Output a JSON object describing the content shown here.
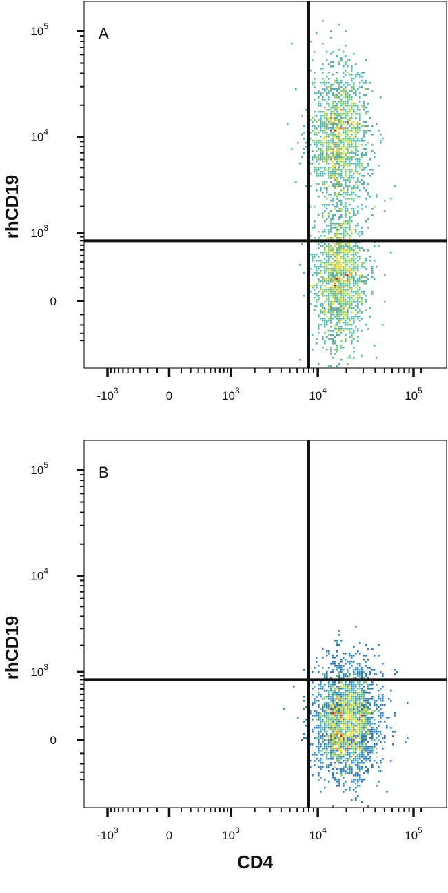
{
  "chart_data": [
    {
      "type": "scatter",
      "panel_label": "A",
      "xlabel": "CD4",
      "ylabel": "rhCD19",
      "x_scale": "biexponential",
      "y_scale": "biexponential",
      "xlim": [
        -2000,
        150000
      ],
      "ylim": [
        -500,
        250000
      ],
      "x_ticks": [
        {
          "value": -1000,
          "base": "-10",
          "exp": "3"
        },
        {
          "value": 0,
          "base": "0",
          "exp": ""
        },
        {
          "value": 1000,
          "base": "10",
          "exp": "3"
        },
        {
          "value": 10000,
          "base": "10",
          "exp": "4"
        },
        {
          "value": 100000,
          "base": "10",
          "exp": "5"
        }
      ],
      "y_ticks": [
        {
          "value": 0,
          "base": "0",
          "exp": ""
        },
        {
          "value": 1000,
          "base": "10",
          "exp": "3"
        },
        {
          "value": 10000,
          "base": "10",
          "exp": "4"
        },
        {
          "value": 100000,
          "base": "10",
          "exp": "5"
        }
      ],
      "gates": {
        "x": 8000,
        "y": 800
      },
      "populations": [
        {
          "center_x": 17000,
          "center_y": 10000,
          "count": 1500,
          "spread_x": 0.16,
          "spread_y": 0.55
        },
        {
          "center_x": 17000,
          "center_y": 200,
          "count": 1600,
          "spread_x": 0.14,
          "spread_y": 0.55
        }
      ],
      "colormap": [
        "#1f3f9f",
        "#2b7bbf",
        "#4fb3b0",
        "#8fd05a",
        "#e8e03a",
        "#f08a25",
        "#d8221a"
      ]
    },
    {
      "type": "scatter",
      "panel_label": "B",
      "xlabel": "CD4",
      "ylabel": "rhCD19",
      "x_scale": "biexponential",
      "y_scale": "biexponential",
      "xlim": [
        -2000,
        150000
      ],
      "ylim": [
        -500,
        250000
      ],
      "x_ticks": [
        {
          "value": -1000,
          "base": "-10",
          "exp": "3"
        },
        {
          "value": 0,
          "base": "0",
          "exp": ""
        },
        {
          "value": 1000,
          "base": "10",
          "exp": "3"
        },
        {
          "value": 10000,
          "base": "10",
          "exp": "4"
        },
        {
          "value": 100000,
          "base": "10",
          "exp": "5"
        }
      ],
      "y_ticks": [
        {
          "value": 0,
          "base": "0",
          "exp": ""
        },
        {
          "value": 1000,
          "base": "10",
          "exp": "3"
        },
        {
          "value": 10000,
          "base": "10",
          "exp": "4"
        },
        {
          "value": 100000,
          "base": "10",
          "exp": "5"
        }
      ],
      "gates": {
        "x": 8000,
        "y": 800
      },
      "populations": [
        {
          "center_x": 20000,
          "center_y": 150,
          "count": 2600,
          "spread_x": 0.17,
          "spread_y": 0.45
        }
      ],
      "colormap": [
        "#1f3f9f",
        "#2b7bbf",
        "#4fb3b0",
        "#8fd05a",
        "#e8e03a",
        "#f08a25",
        "#d8221a"
      ]
    }
  ],
  "labels": {
    "x_axis": "CD4",
    "y_axis": "rhCD19"
  }
}
